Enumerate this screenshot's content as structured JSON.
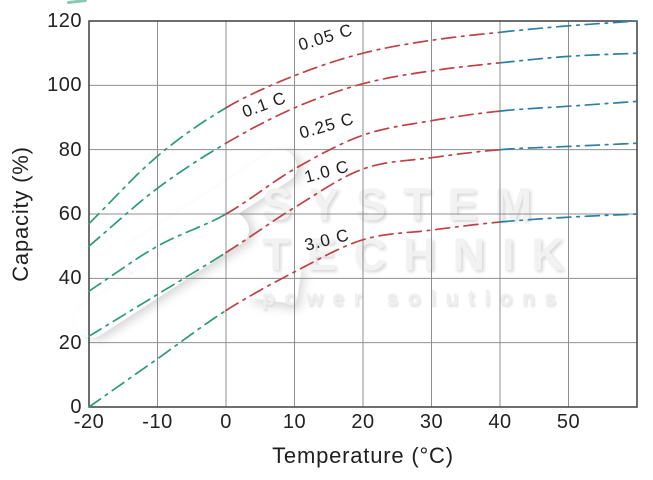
{
  "figure": {
    "background": "#ffffff",
    "watermark": {
      "line1": "SYSTEM",
      "line2": "TECHNIK",
      "line3": "power solutions"
    }
  },
  "chart_data": {
    "type": "line",
    "title": "",
    "xlabel": "Temperature (°C)",
    "ylabel": "Capacity (%)",
    "xlim": [
      -20,
      60
    ],
    "ylim": [
      0,
      120
    ],
    "x_ticks": [
      -20,
      -10,
      0,
      10,
      20,
      30,
      40,
      50
    ],
    "y_ticks": [
      0,
      20,
      40,
      60,
      80,
      100,
      120
    ],
    "grid": true,
    "line_style": "dash-dot",
    "x": [
      -20,
      -10,
      0,
      10,
      20,
      30,
      40,
      50,
      60
    ],
    "series": [
      {
        "name": "0.05 C",
        "values": [
          57,
          78,
          93,
          103,
          110,
          114,
          116.5,
          118.5,
          120
        ]
      },
      {
        "name": "0.1 C",
        "values": [
          50,
          68,
          82,
          93,
          100.5,
          104.5,
          107,
          109,
          110
        ]
      },
      {
        "name": "0.25 C",
        "values": [
          36,
          50,
          60,
          74,
          84.5,
          89,
          92,
          93.5,
          95
        ]
      },
      {
        "name": "1.0 C",
        "values": [
          22,
          35,
          48,
          62,
          74,
          77.5,
          80,
          81,
          82
        ]
      },
      {
        "name": "3.0 C",
        "values": [
          0,
          15,
          30,
          42,
          52,
          55,
          57.5,
          59,
          60
        ]
      }
    ],
    "segment_colors": {
      "cold": "#2a9b77",
      "mid": "#c04046",
      "hot": "#2d7fa6"
    },
    "color_breakpoints": [
      0,
      40
    ],
    "grid_color": "#8f8f8f",
    "border_color": "#3f3f3f",
    "text_color": "#1f1f1f"
  }
}
